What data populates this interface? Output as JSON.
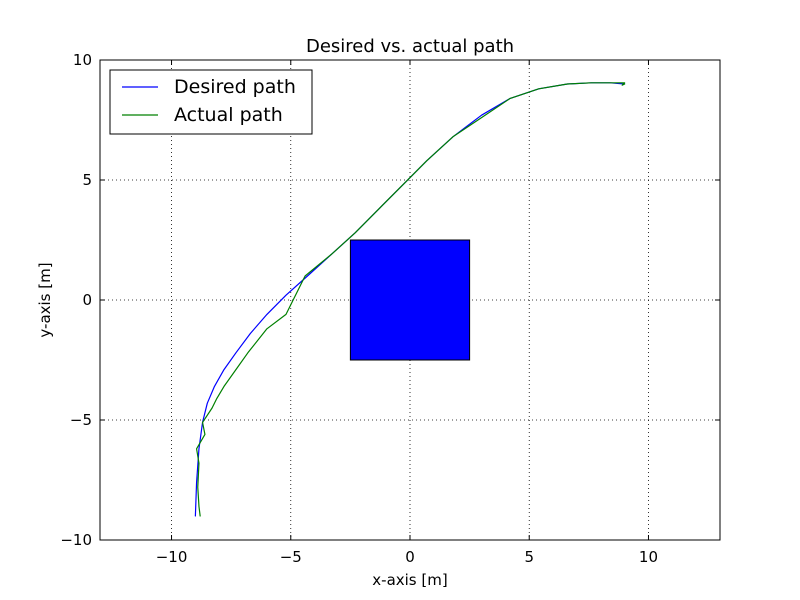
{
  "chart_data": {
    "type": "line",
    "title": "Desired vs. actual path",
    "xlabel": "x-axis [m]",
    "ylabel": "y-axis [m]",
    "xlim": [
      -13,
      13
    ],
    "ylim": [
      -10,
      10
    ],
    "xticks": [
      -10,
      -5,
      0,
      5,
      10
    ],
    "yticks": [
      -10,
      -5,
      0,
      5,
      10
    ],
    "grid": true,
    "legend_position": "top-left",
    "series": [
      {
        "name": "Desired path",
        "color": "#0000ff",
        "x": [
          -9.0,
          -8.95,
          -8.85,
          -8.7,
          -8.5,
          -8.2,
          -7.8,
          -7.3,
          -6.7,
          -6.0,
          -5.2,
          -4.3,
          -3.3,
          -2.3,
          -1.3,
          -0.3,
          0.7,
          1.8,
          3.0,
          4.2,
          5.4,
          6.6,
          7.6,
          8.4,
          9.0
        ],
        "y": [
          -9.0,
          -7.6,
          -6.2,
          -5.1,
          -4.3,
          -3.6,
          -2.9,
          -2.2,
          -1.4,
          -0.6,
          0.2,
          1.0,
          1.9,
          2.8,
          3.8,
          4.8,
          5.8,
          6.8,
          7.7,
          8.4,
          8.8,
          9.0,
          9.05,
          9.05,
          9.0
        ]
      },
      {
        "name": "Actual path",
        "color": "#008000",
        "x": [
          -8.8,
          -8.85,
          -8.9,
          -8.85,
          -8.95,
          -8.6,
          -8.7,
          -8.3,
          -8.1,
          -7.8,
          -7.3,
          -6.8,
          -6.0,
          -5.2,
          -4.4,
          -3.3,
          -2.3,
          -1.3,
          -0.3,
          0.7,
          1.8,
          3.0,
          4.2,
          5.4,
          6.6,
          7.6,
          8.5,
          9.0,
          8.9,
          9.0
        ],
        "y": [
          -9.0,
          -8.6,
          -7.8,
          -6.8,
          -6.2,
          -5.6,
          -5.1,
          -4.5,
          -4.1,
          -3.6,
          -2.9,
          -2.2,
          -1.2,
          -0.6,
          1.0,
          1.9,
          2.8,
          3.8,
          4.8,
          5.8,
          6.8,
          7.6,
          8.4,
          8.8,
          9.0,
          9.05,
          9.05,
          9.05,
          8.95,
          9.0
        ]
      }
    ],
    "shapes": [
      {
        "type": "rectangle",
        "x": [
          -2.5,
          2.5
        ],
        "y": [
          -2.5,
          2.5
        ],
        "fill": "#0000ff"
      }
    ]
  }
}
